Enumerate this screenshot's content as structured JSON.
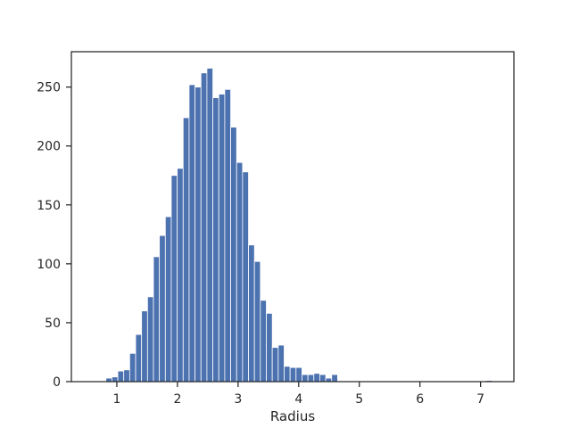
{
  "chart_data": {
    "type": "bar",
    "subtype": "histogram",
    "title": "",
    "xlabel": "Radius",
    "ylabel": "",
    "xlim": [
      0.25,
      7.55
    ],
    "ylim": [
      0,
      280
    ],
    "xticks": [
      1,
      2,
      3,
      4,
      5,
      6,
      7
    ],
    "yticks": [
      0,
      50,
      100,
      150,
      200,
      250
    ],
    "bar_color": "#4c72b0",
    "bin_width": 0.098,
    "bin_starts": [
      0.82,
      0.918,
      1.016,
      1.114,
      1.212,
      1.31,
      1.408,
      1.506,
      1.604,
      1.702,
      1.8,
      1.898,
      1.996,
      2.094,
      2.192,
      2.29,
      2.388,
      2.486,
      2.584,
      2.682,
      2.78,
      2.878,
      2.976,
      3.074,
      3.172,
      3.27,
      3.368,
      3.466,
      3.564,
      3.662,
      3.76,
      3.858,
      3.956,
      4.054,
      4.152,
      4.25,
      4.348,
      4.446,
      4.544,
      4.642,
      4.74,
      4.838,
      4.936,
      5.034,
      5.132,
      5.23,
      5.328,
      5.426,
      5.524,
      5.622,
      5.72,
      5.818,
      5.916,
      6.014,
      6.112,
      6.21,
      6.308,
      6.406,
      6.504,
      6.602,
      6.7,
      6.798,
      6.896,
      6.994,
      7.092
    ],
    "values": [
      3,
      4,
      9,
      10,
      24,
      40,
      60,
      72,
      106,
      124,
      140,
      175,
      181,
      224,
      252,
      250,
      262,
      266,
      241,
      244,
      248,
      216,
      186,
      178,
      116,
      102,
      69,
      58,
      29,
      31,
      13,
      12,
      12,
      6,
      6,
      7,
      6,
      3,
      6,
      0,
      0,
      0,
      0,
      0,
      0,
      0,
      0,
      0,
      0,
      0,
      0,
      0,
      0,
      0,
      0,
      0,
      0,
      0,
      0,
      0,
      0,
      0,
      0,
      0,
      1
    ],
    "grid": false,
    "legend": "none"
  }
}
